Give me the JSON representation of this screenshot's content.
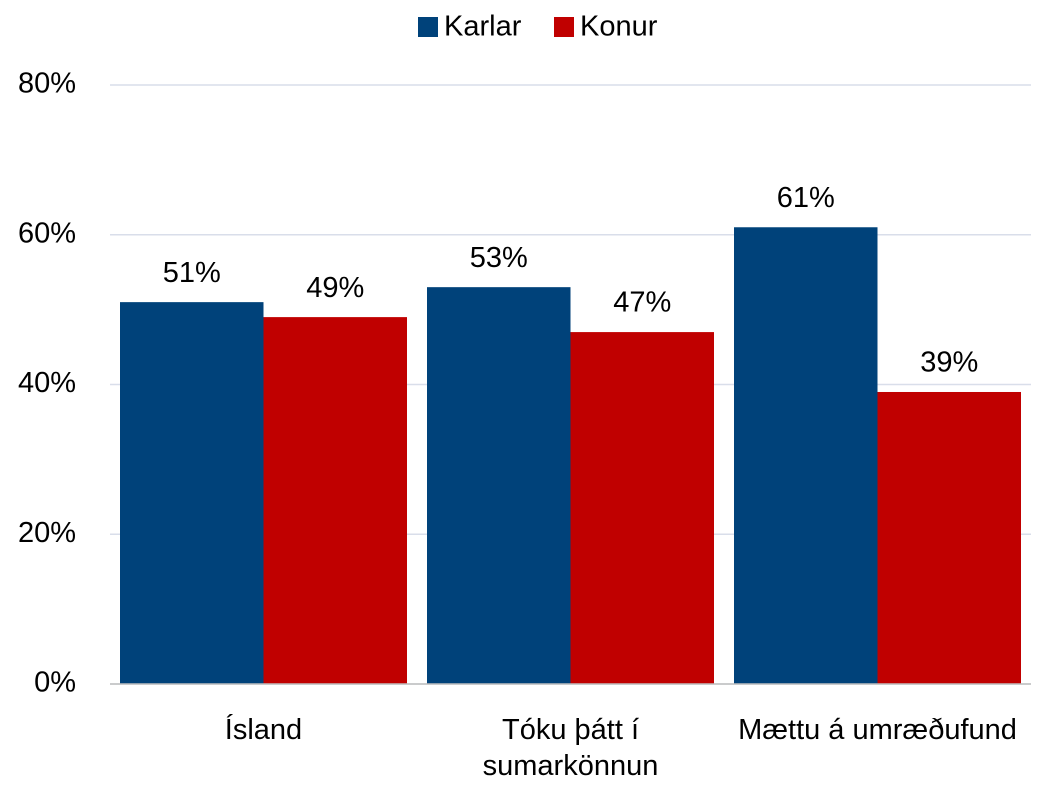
{
  "chart_data": {
    "type": "bar",
    "categories": [
      "Ísland",
      "Tóku þátt í sumarkönnun",
      "Mættu á umræðufund"
    ],
    "series": [
      {
        "name": "Karlar",
        "color": "#00427a",
        "values": [
          51,
          53,
          61
        ],
        "value_labels": [
          "51%",
          "53%",
          "61%"
        ]
      },
      {
        "name": "Konur",
        "color": "#c00000",
        "values": [
          49,
          47,
          39
        ],
        "value_labels": [
          "49%",
          "47%",
          "39%"
        ]
      }
    ],
    "ylim": [
      0,
      80
    ],
    "yticks": [
      {
        "value": 0,
        "label": "0%"
      },
      {
        "value": 20,
        "label": "20%"
      },
      {
        "value": 40,
        "label": "40%"
      },
      {
        "value": 60,
        "label": "60%"
      },
      {
        "value": 80,
        "label": "80%"
      }
    ],
    "grid": true,
    "legend": "top"
  }
}
